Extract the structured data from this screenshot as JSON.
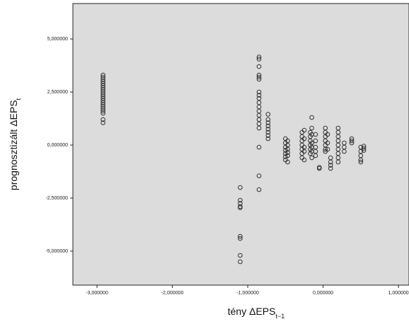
{
  "chart_data": {
    "type": "scatter",
    "x_label": "tény ΔEPS",
    "x_label_sub": "t−1",
    "y_label": "prognosztizált ΔEPS",
    "y_label_sub": "t",
    "xlim": [
      -3.32,
      1.14
    ],
    "ylim": [
      -6.6,
      6.67
    ],
    "xticks": [
      {
        "value": -3,
        "label": "-3,000000"
      },
      {
        "value": -2,
        "label": "-2,000000"
      },
      {
        "value": -1,
        "label": "-1,000000"
      },
      {
        "value": 0,
        "label": "0,000000"
      },
      {
        "value": 1,
        "label": "1,000000"
      }
    ],
    "yticks": [
      {
        "value": 5,
        "label": "5,000000"
      },
      {
        "value": 2.5,
        "label": "2,500000"
      },
      {
        "value": 0,
        "label": "0,000000"
      },
      {
        "value": -2.5,
        "label": "-2,500000"
      },
      {
        "value": -5,
        "label": "-5,000000"
      }
    ],
    "background": "#dcdcdc",
    "color": "#333333",
    "x": [
      -2.92,
      -2.92,
      -2.92,
      -2.92,
      -2.92,
      -2.92,
      -2.92,
      -2.92,
      -2.92,
      -2.92,
      -2.92,
      -2.92,
      -2.92,
      -2.92,
      -2.92,
      -2.92,
      -2.92,
      -2.92,
      -2.92,
      -2.92,
      -2.92,
      -1.1,
      -1.1,
      -1.1,
      -1.1,
      -1.1,
      -1.1,
      -1.1,
      -1.1,
      -1.1,
      -0.85,
      -0.85,
      -0.85,
      -0.85,
      -0.85,
      -0.85,
      -0.85,
      -0.85,
      -0.85,
      -0.85,
      -0.85,
      -0.85,
      -0.85,
      -0.85,
      -0.85,
      -0.85,
      -0.85,
      -0.85,
      -0.85,
      -0.73,
      -0.73,
      -0.73,
      -0.73,
      -0.73,
      -0.73,
      -0.73,
      -0.73,
      -0.5,
      -0.5,
      -0.5,
      -0.5,
      -0.5,
      -0.5,
      -0.5,
      -0.47,
      -0.47,
      -0.47,
      -0.47,
      -0.47,
      -0.47,
      -0.28,
      -0.28,
      -0.28,
      -0.28,
      -0.28,
      -0.28,
      -0.28,
      -0.25,
      -0.25,
      -0.25,
      -0.25,
      -0.25,
      -0.17,
      -0.17,
      -0.17,
      -0.17,
      -0.17,
      -0.17,
      -0.15,
      -0.15,
      -0.15,
      -0.15,
      -0.15,
      -0.15,
      -0.15,
      -0.1,
      -0.1,
      -0.1,
      -0.1,
      -0.1,
      -0.05,
      -0.05,
      0.03,
      0.03,
      0.03,
      0.03,
      0.03,
      0.03,
      0.03,
      0.06,
      0.06,
      0.06,
      0.1,
      0.1,
      0.1,
      0.1,
      0.2,
      0.2,
      0.2,
      0.2,
      0.2,
      0.2,
      0.2,
      0.2,
      0.2,
      0.28,
      0.28,
      0.28,
      0.38,
      0.38,
      0.38,
      0.5,
      0.5,
      0.5,
      0.5,
      0.5,
      0.54,
      0.54,
      0.54
    ],
    "y": [
      3.3,
      3.2,
      3.1,
      3.0,
      2.9,
      2.8,
      2.7,
      2.6,
      2.5,
      2.4,
      2.3,
      2.2,
      2.1,
      2.0,
      1.9,
      1.8,
      1.7,
      1.6,
      1.5,
      1.2,
      1.05,
      -2.0,
      -2.6,
      -2.75,
      -2.9,
      -2.95,
      -4.3,
      -4.4,
      -5.2,
      -5.5,
      4.15,
      4.05,
      3.7,
      3.3,
      3.2,
      3.1,
      2.5,
      2.35,
      2.2,
      2.0,
      1.8,
      1.6,
      1.4,
      1.2,
      1.0,
      0.8,
      -0.1,
      -1.45,
      -2.1,
      1.45,
      1.2,
      1.05,
      0.9,
      0.75,
      0.6,
      0.45,
      0.3,
      0.3,
      0.1,
      -0.1,
      -0.25,
      -0.4,
      -0.55,
      -0.7,
      0.2,
      0.0,
      -0.2,
      -0.35,
      -0.5,
      -0.8,
      0.6,
      0.4,
      0.2,
      0.0,
      -0.2,
      -0.4,
      -0.6,
      0.7,
      0.3,
      -0.1,
      -0.3,
      -0.7,
      0.6,
      0.4,
      0.2,
      0.0,
      -0.2,
      -0.4,
      1.3,
      0.8,
      0.5,
      0.1,
      -0.1,
      -0.3,
      -0.6,
      0.5,
      0.2,
      -0.1,
      -0.3,
      -0.5,
      -1.05,
      -1.1,
      0.8,
      0.6,
      0.4,
      0.2,
      0.0,
      -0.2,
      -0.3,
      0.5,
      0.1,
      -0.2,
      -0.6,
      -0.8,
      -0.95,
      -1.1,
      0.8,
      0.6,
      0.4,
      0.2,
      0.0,
      -0.2,
      -0.4,
      -0.6,
      -0.8,
      0.1,
      -0.1,
      -0.3,
      0.3,
      0.2,
      0.1,
      -0.1,
      -0.3,
      -0.5,
      -0.7,
      -0.8,
      -0.05,
      -0.15,
      -0.25
    ]
  }
}
